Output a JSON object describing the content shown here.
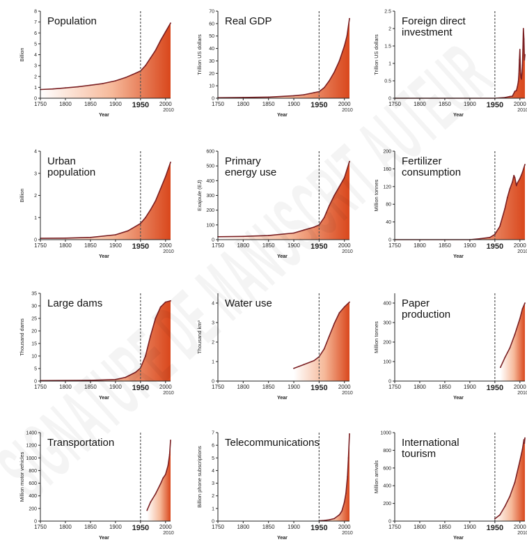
{
  "watermark": "SIGNATURE DE MANUSCRIT AUTEUR",
  "colors": {
    "line": "#7a1f22",
    "fill_dark": "#d9471c",
    "fill_light": "#ffffff",
    "dash": "#555555"
  },
  "shared": {
    "xlabel": "Year",
    "x_ticks": [
      "1750",
      "1800",
      "1850",
      "1900",
      "1950",
      "2000"
    ],
    "x_end_label": "2010",
    "marker_year": 1950,
    "xlim": [
      1750,
      2010
    ]
  },
  "chart_data": [
    {
      "type": "area",
      "title": "Population",
      "ylabel": "Billion",
      "ylim": [
        0,
        8
      ],
      "yticks": [
        "0",
        "1",
        "2",
        "3",
        "4",
        "5",
        "6",
        "7",
        "8"
      ],
      "x": [
        1750,
        1775,
        1800,
        1825,
        1850,
        1875,
        1900,
        1920,
        1940,
        1950,
        1960,
        1970,
        1980,
        1990,
        2000,
        2010
      ],
      "y": [
        0.8,
        0.85,
        0.95,
        1.05,
        1.2,
        1.35,
        1.6,
        1.9,
        2.3,
        2.5,
        3.0,
        3.7,
        4.4,
        5.3,
        6.1,
        6.9
      ]
    },
    {
      "type": "area",
      "title": "Real GDP",
      "ylabel": "Trillion US dollars",
      "ylim": [
        0,
        70
      ],
      "yticks": [
        "0",
        "10",
        "20",
        "30",
        "40",
        "50",
        "60",
        "70"
      ],
      "x": [
        1750,
        1800,
        1850,
        1900,
        1920,
        1940,
        1950,
        1960,
        1970,
        1980,
        1990,
        2000,
        2005,
        2010
      ],
      "y": [
        0.4,
        0.6,
        0.9,
        2,
        2.8,
        4.5,
        5.3,
        8.5,
        14,
        21,
        30,
        42,
        50,
        64
      ]
    },
    {
      "type": "area",
      "title": "Foreign direct\ninvestment",
      "ylabel": "Trillion US dollars",
      "ylim": [
        0,
        2.5
      ],
      "yticks": [
        "0",
        "0.5",
        "1",
        "1.5",
        "2",
        "2.5"
      ],
      "x": [
        1750,
        1950,
        1970,
        1980,
        1985,
        1990,
        1993,
        1995,
        1997,
        1998,
        1999,
        2000,
        2001,
        2002,
        2003,
        2004,
        2005,
        2006,
        2007,
        2008,
        2009,
        2010
      ],
      "y": [
        0,
        0,
        0.02,
        0.05,
        0.06,
        0.2,
        0.22,
        0.33,
        0.48,
        0.7,
        1.1,
        1.4,
        0.8,
        0.6,
        0.55,
        0.7,
        0.95,
        1.4,
        2.0,
        1.7,
        1.1,
        1.25
      ]
    },
    {
      "type": "area",
      "title": "Urban\npopulation",
      "ylabel": "Billion",
      "ylim": [
        0,
        4
      ],
      "yticks": [
        "0",
        "1",
        "2",
        "3",
        "4"
      ],
      "x": [
        1750,
        1800,
        1850,
        1900,
        1925,
        1950,
        1960,
        1970,
        1980,
        1990,
        2000,
        2010
      ],
      "y": [
        0.06,
        0.07,
        0.1,
        0.22,
        0.4,
        0.73,
        1.0,
        1.35,
        1.75,
        2.3,
        2.85,
        3.5
      ]
    },
    {
      "type": "area",
      "title": "Primary\nenergy use",
      "ylabel": "Exajoule (EJ)",
      "ylim": [
        0,
        600
      ],
      "yticks": [
        "0",
        "100",
        "200",
        "300",
        "400",
        "500",
        "600"
      ],
      "x": [
        1750,
        1800,
        1850,
        1900,
        1920,
        1940,
        1950,
        1960,
        1970,
        1980,
        1990,
        2000,
        2010
      ],
      "y": [
        20,
        22,
        28,
        45,
        65,
        85,
        100,
        150,
        230,
        300,
        360,
        420,
        530
      ]
    },
    {
      "type": "area",
      "title": "Fertilizer\nconsumption",
      "ylabel": "Million tonnes",
      "ylim": [
        0,
        200
      ],
      "yticks": [
        "0",
        "40",
        "80",
        "120",
        "160",
        "200"
      ],
      "x": [
        1750,
        1900,
        1920,
        1940,
        1950,
        1960,
        1970,
        1975,
        1980,
        1985,
        1988,
        1990,
        1993,
        1995,
        2000,
        2005,
        2010
      ],
      "y": [
        0,
        0,
        2,
        5,
        12,
        30,
        70,
        95,
        115,
        130,
        145,
        140,
        122,
        128,
        138,
        152,
        170
      ]
    },
    {
      "type": "area",
      "title": "Large dams",
      "ylabel": "Thousand dams",
      "ylim": [
        0,
        35
      ],
      "yticks": [
        "0",
        "5",
        "10",
        "15",
        "20",
        "25",
        "30",
        "35"
      ],
      "x": [
        1750,
        1850,
        1900,
        1920,
        1940,
        1950,
        1960,
        1970,
        1980,
        1990,
        2000,
        2010
      ],
      "y": [
        0.2,
        0.3,
        0.6,
        1.5,
        3.5,
        5.2,
        10,
        18,
        25,
        29.5,
        31.5,
        32
      ]
    },
    {
      "type": "area",
      "title": "Water use",
      "ylabel": "Thousand km³",
      "ylim": [
        0,
        4.5
      ],
      "yticks": [
        "0",
        "1",
        "2",
        "3",
        "4"
      ],
      "x": [
        1900,
        1920,
        1940,
        1950,
        1960,
        1970,
        1980,
        1990,
        2000,
        2010
      ],
      "y": [
        0.65,
        0.85,
        1.05,
        1.25,
        1.65,
        2.3,
        2.95,
        3.5,
        3.8,
        4.05
      ]
    },
    {
      "type": "area",
      "title": "Paper\nproduction",
      "ylabel": "Million tonnes",
      "ylim": [
        0,
        450
      ],
      "yticks": [
        "0",
        "100",
        "200",
        "300",
        "400"
      ],
      "x": [
        1961,
        1970,
        1980,
        1990,
        2000,
        2005,
        2010
      ],
      "y": [
        70,
        120,
        170,
        240,
        320,
        370,
        400
      ]
    },
    {
      "type": "area",
      "title": "Transportation",
      "ylabel": "Million motor vehicles",
      "ylim": [
        0,
        1400
      ],
      "yticks": [
        "0",
        "200",
        "400",
        "600",
        "800",
        "1000",
        "1200",
        "1400"
      ],
      "x": [
        1963,
        1970,
        1980,
        1990,
        1995,
        2000,
        2005,
        2008,
        2010
      ],
      "y": [
        170,
        300,
        430,
        590,
        680,
        740,
        880,
        1050,
        1280
      ]
    },
    {
      "type": "area",
      "title": "Telecommunications",
      "ylabel": "Billion phone subscriptions",
      "ylim": [
        0,
        7
      ],
      "yticks": [
        "0",
        "1",
        "2",
        "3",
        "4",
        "5",
        "6",
        "7"
      ],
      "x": [
        1950,
        1960,
        1970,
        1980,
        1990,
        1995,
        2000,
        2003,
        2006,
        2008,
        2010
      ],
      "y": [
        0.02,
        0.05,
        0.1,
        0.2,
        0.5,
        0.8,
        1.5,
        2.2,
        3.5,
        5.0,
        6.9
      ]
    },
    {
      "type": "area",
      "title": "International\ntourism",
      "ylabel": "Million arrivals",
      "ylim": [
        0,
        1000
      ],
      "yticks": [
        "0",
        "200",
        "400",
        "600",
        "800",
        "1000"
      ],
      "x": [
        1950,
        1960,
        1970,
        1980,
        1990,
        2000,
        2005,
        2008,
        2009,
        2010
      ],
      "y": [
        25,
        70,
        165,
        280,
        440,
        680,
        810,
        920,
        880,
        940
      ]
    }
  ]
}
